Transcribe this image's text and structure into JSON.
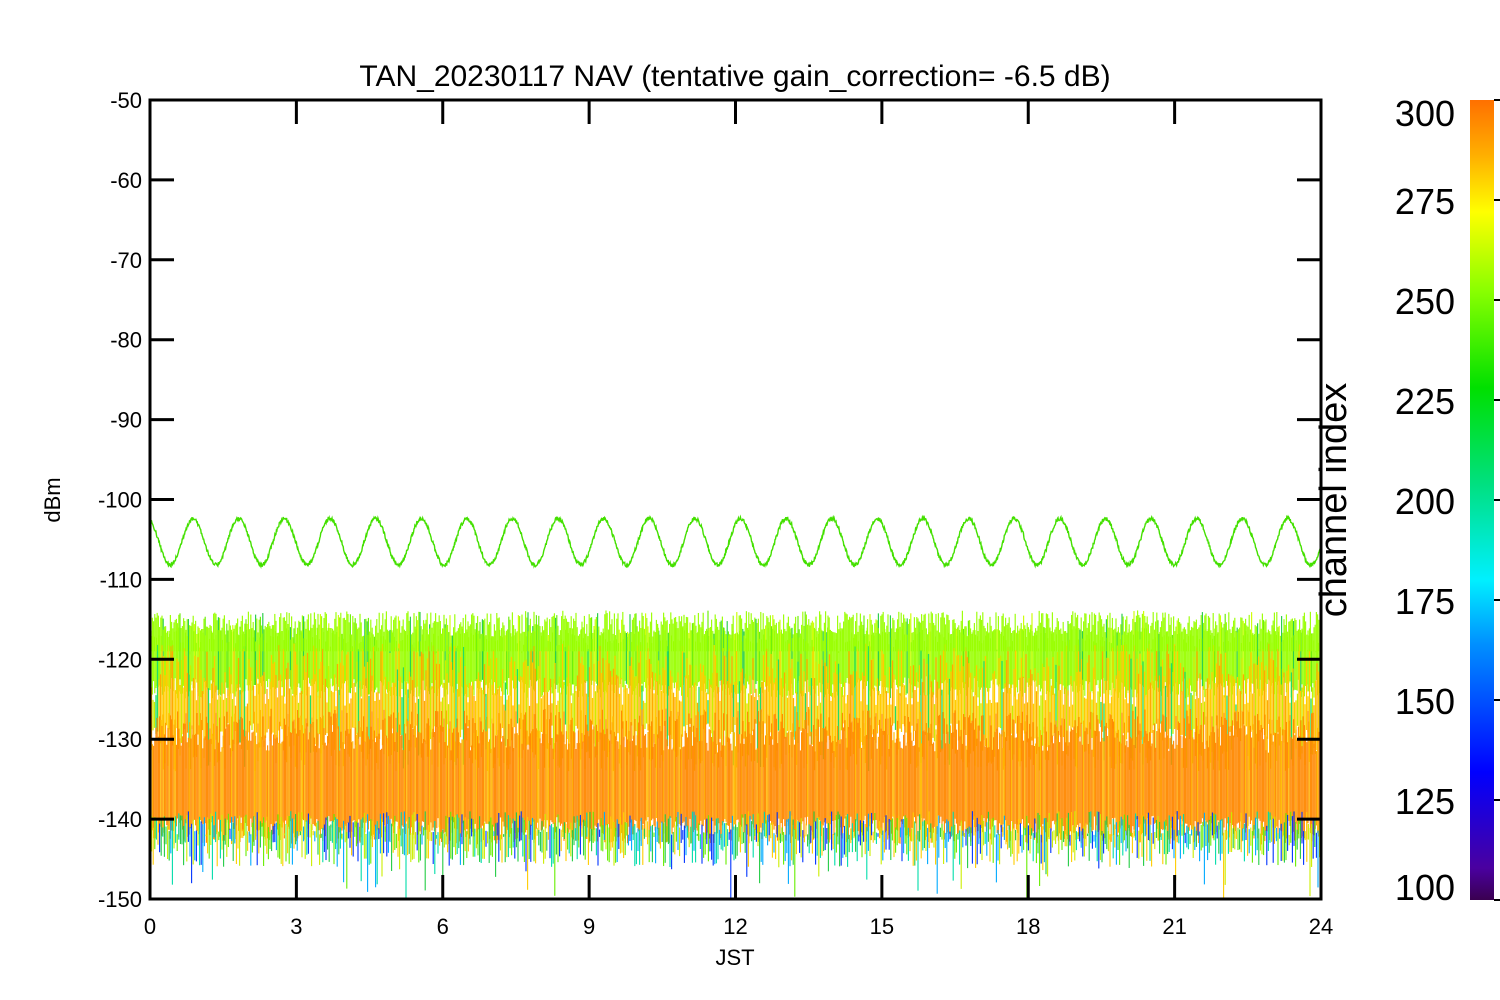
{
  "chart_data": {
    "type": "line",
    "title": "TAN_20230117 NAV (tentative gain_correction= -6.5 dB)",
    "xlabel": "JST",
    "ylabel": "dBm",
    "xlim": [
      0,
      24
    ],
    "ylim": [
      -150,
      -50
    ],
    "xticks": [
      "0",
      "3",
      "6",
      "9",
      "12",
      "15",
      "18",
      "21",
      "24"
    ],
    "yticks": [
      "-50",
      "-60",
      "-70",
      "-80",
      "-90",
      "-100",
      "-110",
      "-120",
      "-130",
      "-140",
      "-150"
    ],
    "grid": false,
    "colorbar": {
      "label": "channel index",
      "range": [
        100,
        300
      ],
      "ticks": [
        "300",
        "275",
        "250",
        "225",
        "200",
        "175",
        "150",
        "125",
        "100"
      ],
      "colormap": "rainbow"
    },
    "series": [
      {
        "channel_index": 245,
        "color": "#44e000",
        "description_type": "sinusoid",
        "center": -105.3,
        "amplitude": 2.9,
        "period_hours": 0.935,
        "x_range": [
          0,
          24
        ]
      },
      {
        "channel_index": 262,
        "color": "#99ff00",
        "description_type": "noise_band",
        "center": -120,
        "range": [
          -124,
          -115
        ]
      },
      {
        "channel_index": 290,
        "color": "#ff8800",
        "description_type": "noise_band",
        "center": -136.5,
        "range": [
          -142,
          -128
        ]
      }
    ]
  }
}
